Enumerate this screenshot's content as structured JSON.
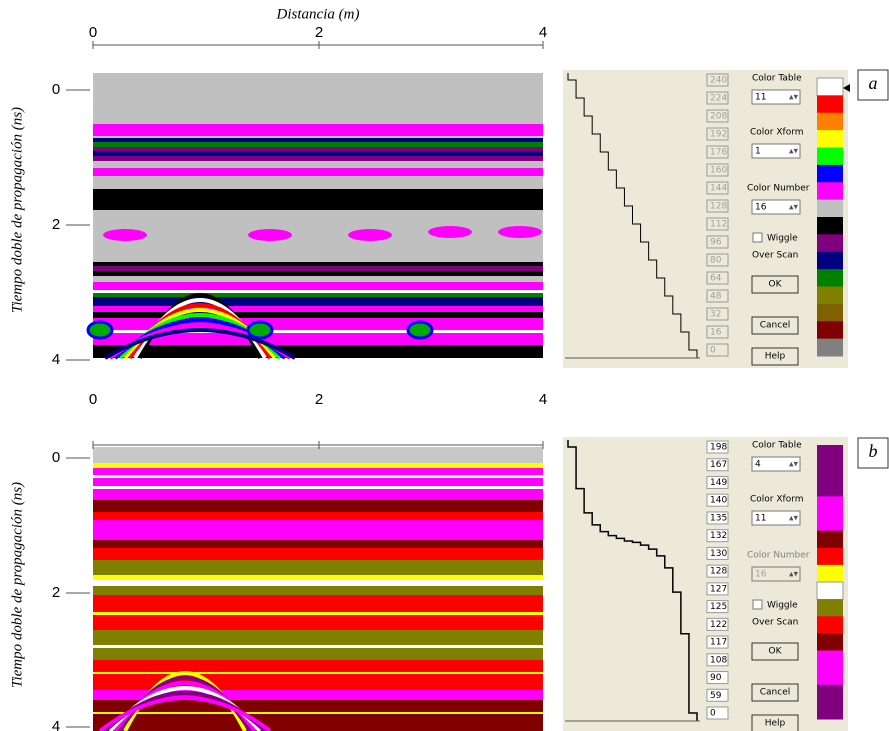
{
  "panels": [
    {
      "label": "a",
      "x_axis_label": "Distancia (m)",
      "y_axis_label": "Tiempo doble de propagación (ns)",
      "x_ticks": [
        "0",
        "2",
        "4"
      ],
      "y_ticks": [
        "0",
        "2",
        "4"
      ],
      "dialog": {
        "color_table_label": "Color Table",
        "color_table": "11",
        "color_xform_label": "Color Xform",
        "color_xform": "1",
        "color_number_label": "Color Number",
        "color_number": "16",
        "wiggle": "Wiggle",
        "over_scan": "Over Scan",
        "ok": "OK",
        "cancel": "Cancel",
        "help": "Help",
        "levels": [
          240,
          224,
          208,
          192,
          176,
          160,
          144,
          128,
          112,
          96,
          80,
          64,
          48,
          32,
          16,
          0
        ],
        "palette": [
          "#ffffff",
          "#ff0000",
          "#ff8000",
          "#ffff00",
          "#00ff00",
          "#0000ff",
          "#ff00ff",
          "#c0c0c0",
          "#000000",
          "#800080",
          "#000080",
          "#008000",
          "#808000",
          "#806000",
          "#800000",
          "#808080"
        ]
      }
    },
    {
      "label": "b",
      "y_axis_label": "Tiempo doble de propagación (ns)",
      "x_ticks": [
        "0",
        "2",
        "4"
      ],
      "y_ticks": [
        "0",
        "2",
        "4"
      ],
      "dialog": {
        "color_table_label": "Color Table",
        "color_table": "4",
        "color_xform_label": "Color Xform",
        "color_xform": "11",
        "color_number_label": "Color Number",
        "color_number": "16",
        "wiggle": "Wiggle",
        "over_scan": "Over Scan",
        "ok": "OK",
        "cancel": "Cancel",
        "help": "Help",
        "levels": [
          198,
          167,
          149,
          140,
          135,
          132,
          130,
          128,
          127,
          125,
          122,
          117,
          108,
          90,
          59,
          0
        ],
        "palette": [
          "#800080",
          "#800080",
          "#800080",
          "#ff00ff",
          "#ff00ff",
          "#800000",
          "#ff0000",
          "#ffff00",
          "#ffffff",
          "#808000",
          "#ff0000",
          "#800000",
          "#ff00ff",
          "#ff00ff",
          "#800080",
          "#800080"
        ]
      }
    }
  ]
}
